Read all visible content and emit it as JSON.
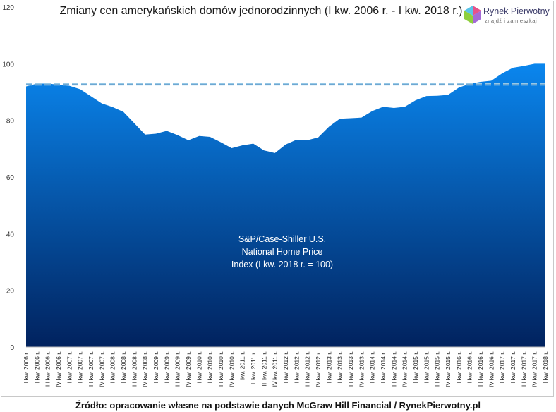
{
  "logo": {
    "name": "Rynek Pierwotny",
    "tagline": "znajdź i zamieszkaj",
    "colors": [
      "#e6528a",
      "#59c4e8",
      "#8fcf3d",
      "#a46ad6"
    ]
  },
  "source": "Źródło: opracowanie własne na podstawie danych McGraw Hill Financial / RynekPierwotny.pl",
  "chart_data": {
    "type": "area",
    "title": "Zmiany cen amerykańskich domów jednorodzinnych (I kw. 2006 r. - I kw. 2018 r.)",
    "annotation": [
      "S&P/Case-Shiller U.S.",
      "National Home Price",
      "Index (I kw. 2018 r. = 100)"
    ],
    "ylim": [
      0,
      120
    ],
    "yticks": [
      0,
      20,
      40,
      60,
      80,
      100,
      120
    ],
    "grid": false,
    "legend": "none",
    "colors": {
      "area_top": "#0a86ee",
      "area_bottom": "#01225e",
      "reference_line": "#a9d8f0"
    },
    "reference_line": 92.8,
    "categories": [
      "I kw. 2006 r.",
      "II kw. 2006 r.",
      "III kw. 2006 r.",
      "IV kw. 2006 r.",
      "I kw. 2007 r.",
      "II kw. 2007 r.",
      "III kw. 2007 r.",
      "IV kw. 2007 r.",
      "I kw. 2008 r.",
      "II kw. 2008 r.",
      "III kw. 2008 r.",
      "IV kw. 2008 r.",
      "I kw. 2009 r.",
      "II kw. 2009 r.",
      "III kw. 2009 r.",
      "IV kw. 2009 r.",
      "I kw. 2010 r.",
      "II kw. 2010 r.",
      "III kw. 2010 r.",
      "IV kw. 2010 r.",
      "I kw. 2011 r.",
      "II kw. 2011 r.",
      "III kw. 2011 r.",
      "IV kw. 2011 r.",
      "I kw. 2012 r.",
      "II kw. 2012 r.",
      "III kw. 2012 r.",
      "IV kw. 2012 r.",
      "I kw. 2013 r.",
      "II kw. 2013 r.",
      "III kw. 2013 r.",
      "IV kw. 2013 r.",
      "I kw. 2014 r.",
      "II kw. 2014 r.",
      "III kw. 2014 r.",
      "IV kw. 2014 r.",
      "I kw. 2015 r.",
      "II kw. 2015 r.",
      "III kw. 2015 r.",
      "IV kw. 2015 r.",
      "I kw. 2016 r.",
      "II kw. 2016 r.",
      "III kw. 2016 r.",
      "IV kw. 2016 r.",
      "I kw. 2017 r.",
      "II kw. 2017 r.",
      "III kw. 2017 r.",
      "IV kw. 2017 r.",
      "I kw. 2018 r."
    ],
    "values": [
      92.0,
      93.0,
      93.0,
      92.6,
      92.2,
      91.0,
      88.5,
      86.0,
      84.7,
      83.0,
      79.0,
      75.0,
      75.3,
      76.3,
      74.8,
      73.0,
      74.5,
      74.2,
      72.3,
      70.2,
      71.2,
      71.8,
      69.4,
      68.5,
      71.5,
      73.2,
      73.0,
      74.0,
      77.8,
      80.6,
      80.8,
      81.0,
      83.3,
      84.8,
      84.4,
      84.8,
      87.1,
      88.6,
      88.7,
      89.0,
      91.6,
      92.9,
      93.6,
      94.0,
      96.6,
      98.6,
      99.2,
      100.0,
      100.0
    ]
  }
}
